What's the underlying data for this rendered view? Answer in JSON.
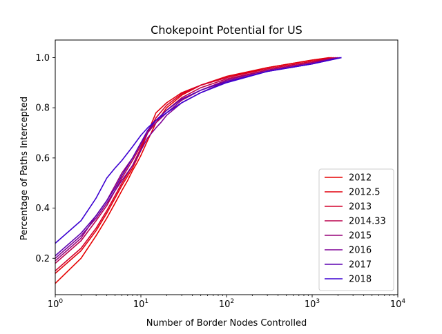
{
  "chart_data": {
    "type": "line",
    "title": "Chokepoint Potential for US",
    "xlabel": "Number of Border Nodes Controlled",
    "ylabel": "Percentage of Paths Intercepted",
    "xscale": "log",
    "xlim": [
      1,
      10000
    ],
    "ylim": [
      0.055,
      1.07
    ],
    "xticks": [
      {
        "value": 1,
        "base": "10",
        "exp": "0"
      },
      {
        "value": 10,
        "base": "10",
        "exp": "1"
      },
      {
        "value": 100,
        "base": "10",
        "exp": "2"
      },
      {
        "value": 1000,
        "base": "10",
        "exp": "3"
      },
      {
        "value": 10000,
        "base": "10",
        "exp": "4"
      }
    ],
    "yticks": [
      {
        "value": 0.2,
        "label": "0.2"
      },
      {
        "value": 0.4,
        "label": "0.4"
      },
      {
        "value": 0.6,
        "label": "0.6"
      },
      {
        "value": 0.8,
        "label": "0.8"
      },
      {
        "value": 1.0,
        "label": "1.0"
      }
    ],
    "grid": false,
    "legend_position": "lower-right",
    "series": [
      {
        "name": "2012",
        "color": "#e60000",
        "x": [
          1,
          2,
          3,
          4,
          5,
          6,
          7,
          8,
          9,
          10,
          12,
          15,
          20,
          30,
          50,
          100,
          300,
          1000,
          1600
        ],
        "y": [
          0.1,
          0.2,
          0.29,
          0.36,
          0.42,
          0.47,
          0.51,
          0.55,
          0.58,
          0.61,
          0.67,
          0.74,
          0.8,
          0.85,
          0.89,
          0.92,
          0.96,
          0.99,
          1.0
        ]
      },
      {
        "name": "2012.5",
        "color": "#e2000d",
        "x": [
          1,
          2,
          3,
          4,
          5,
          6,
          8,
          10,
          12,
          15,
          20,
          30,
          50,
          100,
          300,
          1000,
          1700
        ],
        "y": [
          0.14,
          0.23,
          0.31,
          0.38,
          0.44,
          0.49,
          0.56,
          0.63,
          0.7,
          0.78,
          0.82,
          0.86,
          0.89,
          0.925,
          0.96,
          0.99,
          1.0
        ]
      },
      {
        "name": "2013",
        "color": "#d3002c",
        "x": [
          1,
          2,
          3,
          4,
          5,
          6,
          8,
          10,
          12,
          15,
          20,
          30,
          50,
          100,
          300,
          1000,
          1800
        ],
        "y": [
          0.15,
          0.24,
          0.32,
          0.39,
          0.45,
          0.5,
          0.57,
          0.64,
          0.7,
          0.76,
          0.81,
          0.855,
          0.89,
          0.92,
          0.955,
          0.985,
          1.0
        ]
      },
      {
        "name": "2014.33",
        "color": "#ba004d",
        "x": [
          1,
          2,
          3,
          4,
          5,
          6,
          8,
          10,
          12,
          15,
          20,
          30,
          50,
          100,
          300,
          1000,
          1900
        ],
        "y": [
          0.18,
          0.27,
          0.35,
          0.41,
          0.47,
          0.52,
          0.59,
          0.65,
          0.7,
          0.75,
          0.79,
          0.84,
          0.88,
          0.915,
          0.95,
          0.98,
          1.0
        ]
      },
      {
        "name": "2015",
        "color": "#960078",
        "x": [
          1,
          2,
          3,
          4,
          5,
          6,
          8,
          10,
          12,
          15,
          20,
          30,
          50,
          100,
          300,
          1000,
          2000
        ],
        "y": [
          0.19,
          0.28,
          0.37,
          0.43,
          0.49,
          0.54,
          0.6,
          0.66,
          0.7,
          0.74,
          0.78,
          0.83,
          0.87,
          0.91,
          0.95,
          0.98,
          1.0
        ]
      },
      {
        "name": "2016",
        "color": "#7f0095",
        "x": [
          1,
          2,
          3,
          4,
          5,
          6,
          8,
          10,
          12,
          15,
          17,
          20,
          30,
          50,
          100,
          300,
          1000,
          2100
        ],
        "y": [
          0.2,
          0.29,
          0.36,
          0.42,
          0.47,
          0.51,
          0.57,
          0.63,
          0.68,
          0.72,
          0.74,
          0.77,
          0.82,
          0.86,
          0.905,
          0.945,
          0.975,
          1.0
        ]
      },
      {
        "name": "2017",
        "color": "#5c00b0",
        "x": [
          1,
          2,
          3,
          4,
          5,
          6,
          8,
          10,
          12,
          15,
          20,
          30,
          50,
          100,
          300,
          1000,
          2200
        ],
        "y": [
          0.21,
          0.3,
          0.37,
          0.43,
          0.48,
          0.53,
          0.6,
          0.66,
          0.71,
          0.75,
          0.79,
          0.835,
          0.87,
          0.905,
          0.945,
          0.975,
          1.0
        ]
      },
      {
        "name": "2018",
        "color": "#3c00d2",
        "x": [
          1,
          2,
          3,
          4,
          5,
          6,
          8,
          10,
          12,
          15,
          20,
          30,
          50,
          100,
          300,
          1000,
          2200
        ],
        "y": [
          0.26,
          0.35,
          0.44,
          0.52,
          0.56,
          0.59,
          0.645,
          0.69,
          0.72,
          0.75,
          0.78,
          0.82,
          0.86,
          0.9,
          0.945,
          0.975,
          1.0
        ]
      }
    ]
  }
}
